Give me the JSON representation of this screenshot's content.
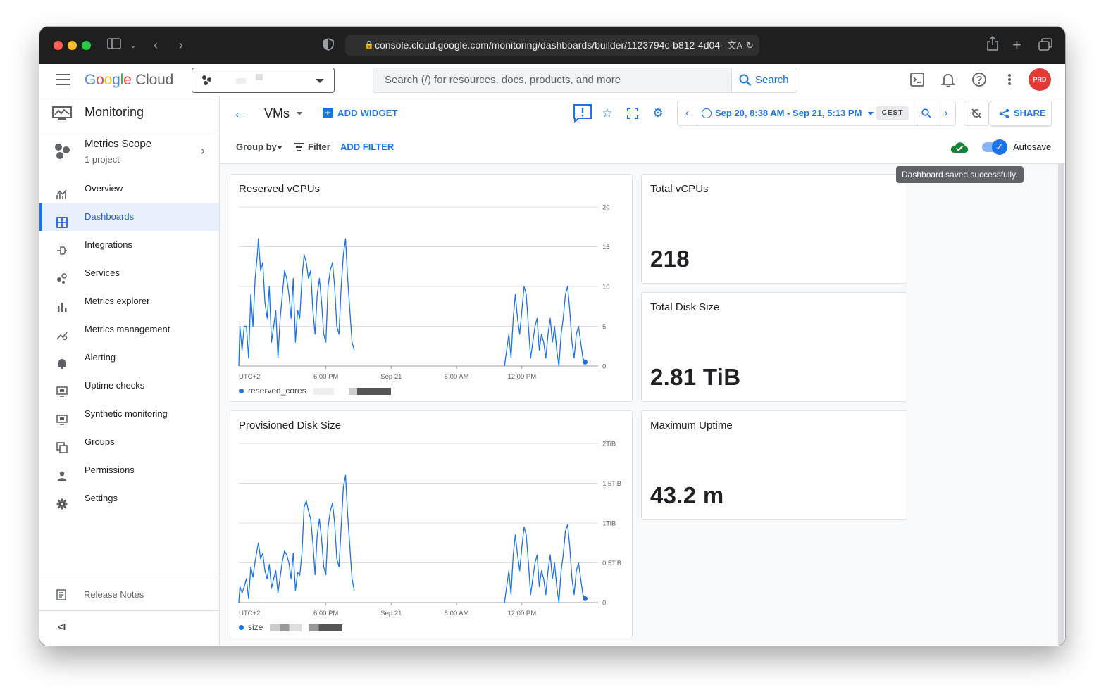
{
  "browser": {
    "url": "console.cloud.google.com/monitoring/dashboards/builder/1123794c-b812-4d04-"
  },
  "topbar": {
    "logo_google": "Google",
    "logo_cloud": "Cloud",
    "search_placeholder": "Search (/) for resources, docs, products, and more",
    "search_button": "Search",
    "avatar_initials": "PRD"
  },
  "sidebar": {
    "title": "Monitoring",
    "scope": {
      "name": "Metrics Scope",
      "sub": "1 project"
    },
    "items": [
      {
        "label": "Overview",
        "icon": "chart-icon"
      },
      {
        "label": "Dashboards",
        "icon": "dashboard-icon",
        "active": true
      },
      {
        "label": "Integrations",
        "icon": "integrations-icon"
      },
      {
        "label": "Services",
        "icon": "services-icon"
      },
      {
        "label": "Metrics explorer",
        "icon": "bar-chart-icon"
      },
      {
        "label": "Metrics management",
        "icon": "metrics-management-icon"
      },
      {
        "label": "Alerting",
        "icon": "bell-icon"
      },
      {
        "label": "Uptime checks",
        "icon": "monitor-icon"
      },
      {
        "label": "Synthetic monitoring",
        "icon": "monitor-icon"
      },
      {
        "label": "Groups",
        "icon": "groups-icon"
      },
      {
        "label": "Permissions",
        "icon": "person-icon"
      },
      {
        "label": "Settings",
        "icon": "gear-icon"
      }
    ],
    "release_notes": "Release Notes",
    "collapse": "<I"
  },
  "toolbar": {
    "dashboard_name": "VMs",
    "add_widget": "ADD WIDGET",
    "time_range": "Sep 20, 8:38 AM - Sep 21, 5:13 PM",
    "timezone": "CEST",
    "share": "SHARE",
    "group_by": "Group by",
    "filter": "Filter",
    "add_filter": "ADD FILTER",
    "autosave": "Autosave",
    "autosave_on": true,
    "tooltip": "Dashboard saved successfully."
  },
  "widgets": {
    "reserved_vcpus": {
      "title": "Reserved vCPUs",
      "legend": "reserved_cores"
    },
    "provisioned_disk": {
      "title": "Provisioned Disk Size",
      "legend": "size"
    },
    "total_vcpus": {
      "title": "Total vCPUs",
      "value": "218"
    },
    "total_disk": {
      "title": "Total Disk Size",
      "value": "2.81 TiB"
    },
    "max_uptime": {
      "title": "Maximum Uptime",
      "value": "43.2 m"
    }
  },
  "chart_data": [
    {
      "type": "line",
      "title": "Reserved vCPUs",
      "ylim": [
        0,
        20
      ],
      "y_ticks": [
        "20",
        "15",
        "10",
        "5",
        "0"
      ],
      "x_ticks": [
        "UTC+2",
        "6:00 PM",
        "Sep 21",
        "6:00 AM",
        "12:00 PM"
      ],
      "x_tick_hours": [
        0,
        8,
        14,
        20,
        26
      ],
      "x_range_hours": [
        0,
        33
      ],
      "series": [
        {
          "name": "reserved_cores",
          "color": "#1a73e8",
          "segments": [
            [
              [
                0.0,
                0
              ],
              [
                0.1,
                5
              ],
              [
                0.3,
                2
              ],
              [
                0.5,
                5
              ],
              [
                0.7,
                5
              ],
              [
                0.9,
                1
              ],
              [
                1.1,
                9
              ],
              [
                1.3,
                5
              ],
              [
                1.5,
                11
              ],
              [
                1.7,
                14
              ],
              [
                1.8,
                16
              ],
              [
                2.0,
                12
              ],
              [
                2.2,
                13
              ],
              [
                2.4,
                8
              ],
              [
                2.6,
                6
              ],
              [
                2.8,
                10
              ],
              [
                3.0,
                3
              ],
              [
                3.2,
                5
              ],
              [
                3.4,
                7
              ],
              [
                3.6,
                1
              ],
              [
                3.8,
                6
              ],
              [
                4.0,
                9
              ],
              [
                4.2,
                12
              ],
              [
                4.4,
                11
              ],
              [
                4.6,
                9
              ],
              [
                4.8,
                6
              ],
              [
                5.0,
                11
              ],
              [
                5.2,
                3
              ],
              [
                5.4,
                7
              ],
              [
                5.6,
                6
              ],
              [
                5.8,
                11
              ],
              [
                6.0,
                14
              ],
              [
                6.2,
                13
              ],
              [
                6.4,
                11
              ],
              [
                6.6,
                12
              ],
              [
                6.8,
                7
              ],
              [
                7.0,
                4
              ],
              [
                7.2,
                9
              ],
              [
                7.4,
                11
              ],
              [
                7.6,
                8
              ],
              [
                7.8,
                4
              ],
              [
                8.0,
                3
              ],
              [
                8.2,
                10
              ],
              [
                8.4,
                12
              ],
              [
                8.6,
                13
              ],
              [
                8.8,
                10
              ],
              [
                9.0,
                5
              ],
              [
                9.2,
                4
              ],
              [
                9.4,
                10
              ],
              [
                9.6,
                14
              ],
              [
                9.8,
                16
              ],
              [
                10.0,
                11
              ],
              [
                10.2,
                7
              ],
              [
                10.4,
                3
              ],
              [
                10.6,
                2
              ]
            ],
            [
              [
                24.4,
                0
              ],
              [
                24.6,
                2
              ],
              [
                24.8,
                4
              ],
              [
                25.0,
                1
              ],
              [
                25.2,
                6
              ],
              [
                25.4,
                9
              ],
              [
                25.6,
                6
              ],
              [
                25.8,
                4
              ],
              [
                26.0,
                7
              ],
              [
                26.2,
                10
              ],
              [
                26.4,
                9
              ],
              [
                26.6,
                5
              ],
              [
                26.8,
                1
              ],
              [
                27.0,
                3
              ],
              [
                27.2,
                5
              ],
              [
                27.4,
                6
              ],
              [
                27.6,
                2
              ],
              [
                27.8,
                4
              ],
              [
                28.0,
                3
              ],
              [
                28.2,
                1
              ],
              [
                28.4,
                4
              ],
              [
                28.6,
                6
              ],
              [
                28.8,
                3
              ],
              [
                29.0,
                5
              ],
              [
                29.2,
                2
              ],
              [
                29.4,
                0
              ],
              [
                29.6,
                4
              ],
              [
                29.8,
                6
              ],
              [
                30.0,
                9
              ],
              [
                30.2,
                10
              ],
              [
                30.4,
                7
              ],
              [
                30.6,
                3
              ],
              [
                30.8,
                1
              ],
              [
                31.0,
                4
              ],
              [
                31.2,
                5
              ],
              [
                31.4,
                3
              ],
              [
                31.6,
                1
              ],
              [
                31.8,
                0.5
              ]
            ]
          ]
        }
      ]
    },
    {
      "type": "line",
      "title": "Provisioned Disk Size",
      "ylim": [
        0,
        2
      ],
      "y_ticks": [
        "2TiB",
        "1.5TiB",
        "1TiB",
        "0.5TiB",
        "0"
      ],
      "x_ticks": [
        "UTC+2",
        "6:00 PM",
        "Sep 21",
        "6:00 AM",
        "12:00 PM"
      ],
      "x_tick_hours": [
        0,
        8,
        14,
        20,
        26
      ],
      "x_range_hours": [
        0,
        33
      ],
      "series": [
        {
          "name": "size",
          "color": "#1a73e8",
          "segments": [
            [
              [
                0.0,
                0
              ],
              [
                0.1,
                0.2
              ],
              [
                0.3,
                0.12
              ],
              [
                0.5,
                0.2
              ],
              [
                0.7,
                0.3
              ],
              [
                0.9,
                0.05
              ],
              [
                1.1,
                0.45
              ],
              [
                1.3,
                0.32
              ],
              [
                1.5,
                0.52
              ],
              [
                1.7,
                0.68
              ],
              [
                1.8,
                0.75
              ],
              [
                2.0,
                0.55
              ],
              [
                2.2,
                0.62
              ],
              [
                2.4,
                0.4
              ],
              [
                2.6,
                0.3
              ],
              [
                2.8,
                0.48
              ],
              [
                3.0,
                0.18
              ],
              [
                3.2,
                0.3
              ],
              [
                3.4,
                0.4
              ],
              [
                3.6,
                0.12
              ],
              [
                3.8,
                0.32
              ],
              [
                4.0,
                0.52
              ],
              [
                4.2,
                0.65
              ],
              [
                4.4,
                0.6
              ],
              [
                4.6,
                0.5
              ],
              [
                4.8,
                0.3
              ],
              [
                5.0,
                0.62
              ],
              [
                5.2,
                0.15
              ],
              [
                5.4,
                0.38
              ],
              [
                5.6,
                0.34
              ],
              [
                5.8,
                0.62
              ],
              [
                6.0,
                1.2
              ],
              [
                6.2,
                1.28
              ],
              [
                6.4,
                1.15
              ],
              [
                6.6,
                1.05
              ],
              [
                6.8,
                0.75
              ],
              [
                7.0,
                0.35
              ],
              [
                7.2,
                0.85
              ],
              [
                7.4,
                1.05
              ],
              [
                7.6,
                0.8
              ],
              [
                7.8,
                0.45
              ],
              [
                8.0,
                0.35
              ],
              [
                8.2,
                0.95
              ],
              [
                8.4,
                1.15
              ],
              [
                8.6,
                1.25
              ],
              [
                8.8,
                1.0
              ],
              [
                9.0,
                0.55
              ],
              [
                9.2,
                0.45
              ],
              [
                9.4,
                0.95
              ],
              [
                9.6,
                1.45
              ],
              [
                9.8,
                1.6
              ],
              [
                10.0,
                1.1
              ],
              [
                10.2,
                0.7
              ],
              [
                10.4,
                0.3
              ],
              [
                10.6,
                0.15
              ]
            ],
            [
              [
                24.4,
                0
              ],
              [
                24.6,
                0.2
              ],
              [
                24.8,
                0.4
              ],
              [
                25.0,
                0.1
              ],
              [
                25.2,
                0.6
              ],
              [
                25.4,
                0.85
              ],
              [
                25.6,
                0.6
              ],
              [
                25.8,
                0.4
              ],
              [
                26.0,
                0.7
              ],
              [
                26.2,
                0.95
              ],
              [
                26.4,
                0.85
              ],
              [
                26.6,
                0.5
              ],
              [
                26.8,
                0.1
              ],
              [
                27.0,
                0.3
              ],
              [
                27.2,
                0.5
              ],
              [
                27.4,
                0.6
              ],
              [
                27.6,
                0.2
              ],
              [
                27.8,
                0.4
              ],
              [
                28.0,
                0.3
              ],
              [
                28.2,
                0.1
              ],
              [
                28.4,
                0.4
              ],
              [
                28.6,
                0.6
              ],
              [
                28.8,
                0.3
              ],
              [
                29.0,
                0.5
              ],
              [
                29.2,
                0.2
              ],
              [
                29.4,
                0.0
              ],
              [
                29.6,
                0.4
              ],
              [
                29.8,
                0.6
              ],
              [
                30.0,
                0.9
              ],
              [
                30.2,
                0.98
              ],
              [
                30.4,
                0.7
              ],
              [
                30.6,
                0.3
              ],
              [
                30.8,
                0.1
              ],
              [
                31.0,
                0.4
              ],
              [
                31.2,
                0.5
              ],
              [
                31.4,
                0.3
              ],
              [
                31.6,
                0.1
              ],
              [
                31.8,
                0.05
              ]
            ]
          ]
        }
      ]
    }
  ]
}
